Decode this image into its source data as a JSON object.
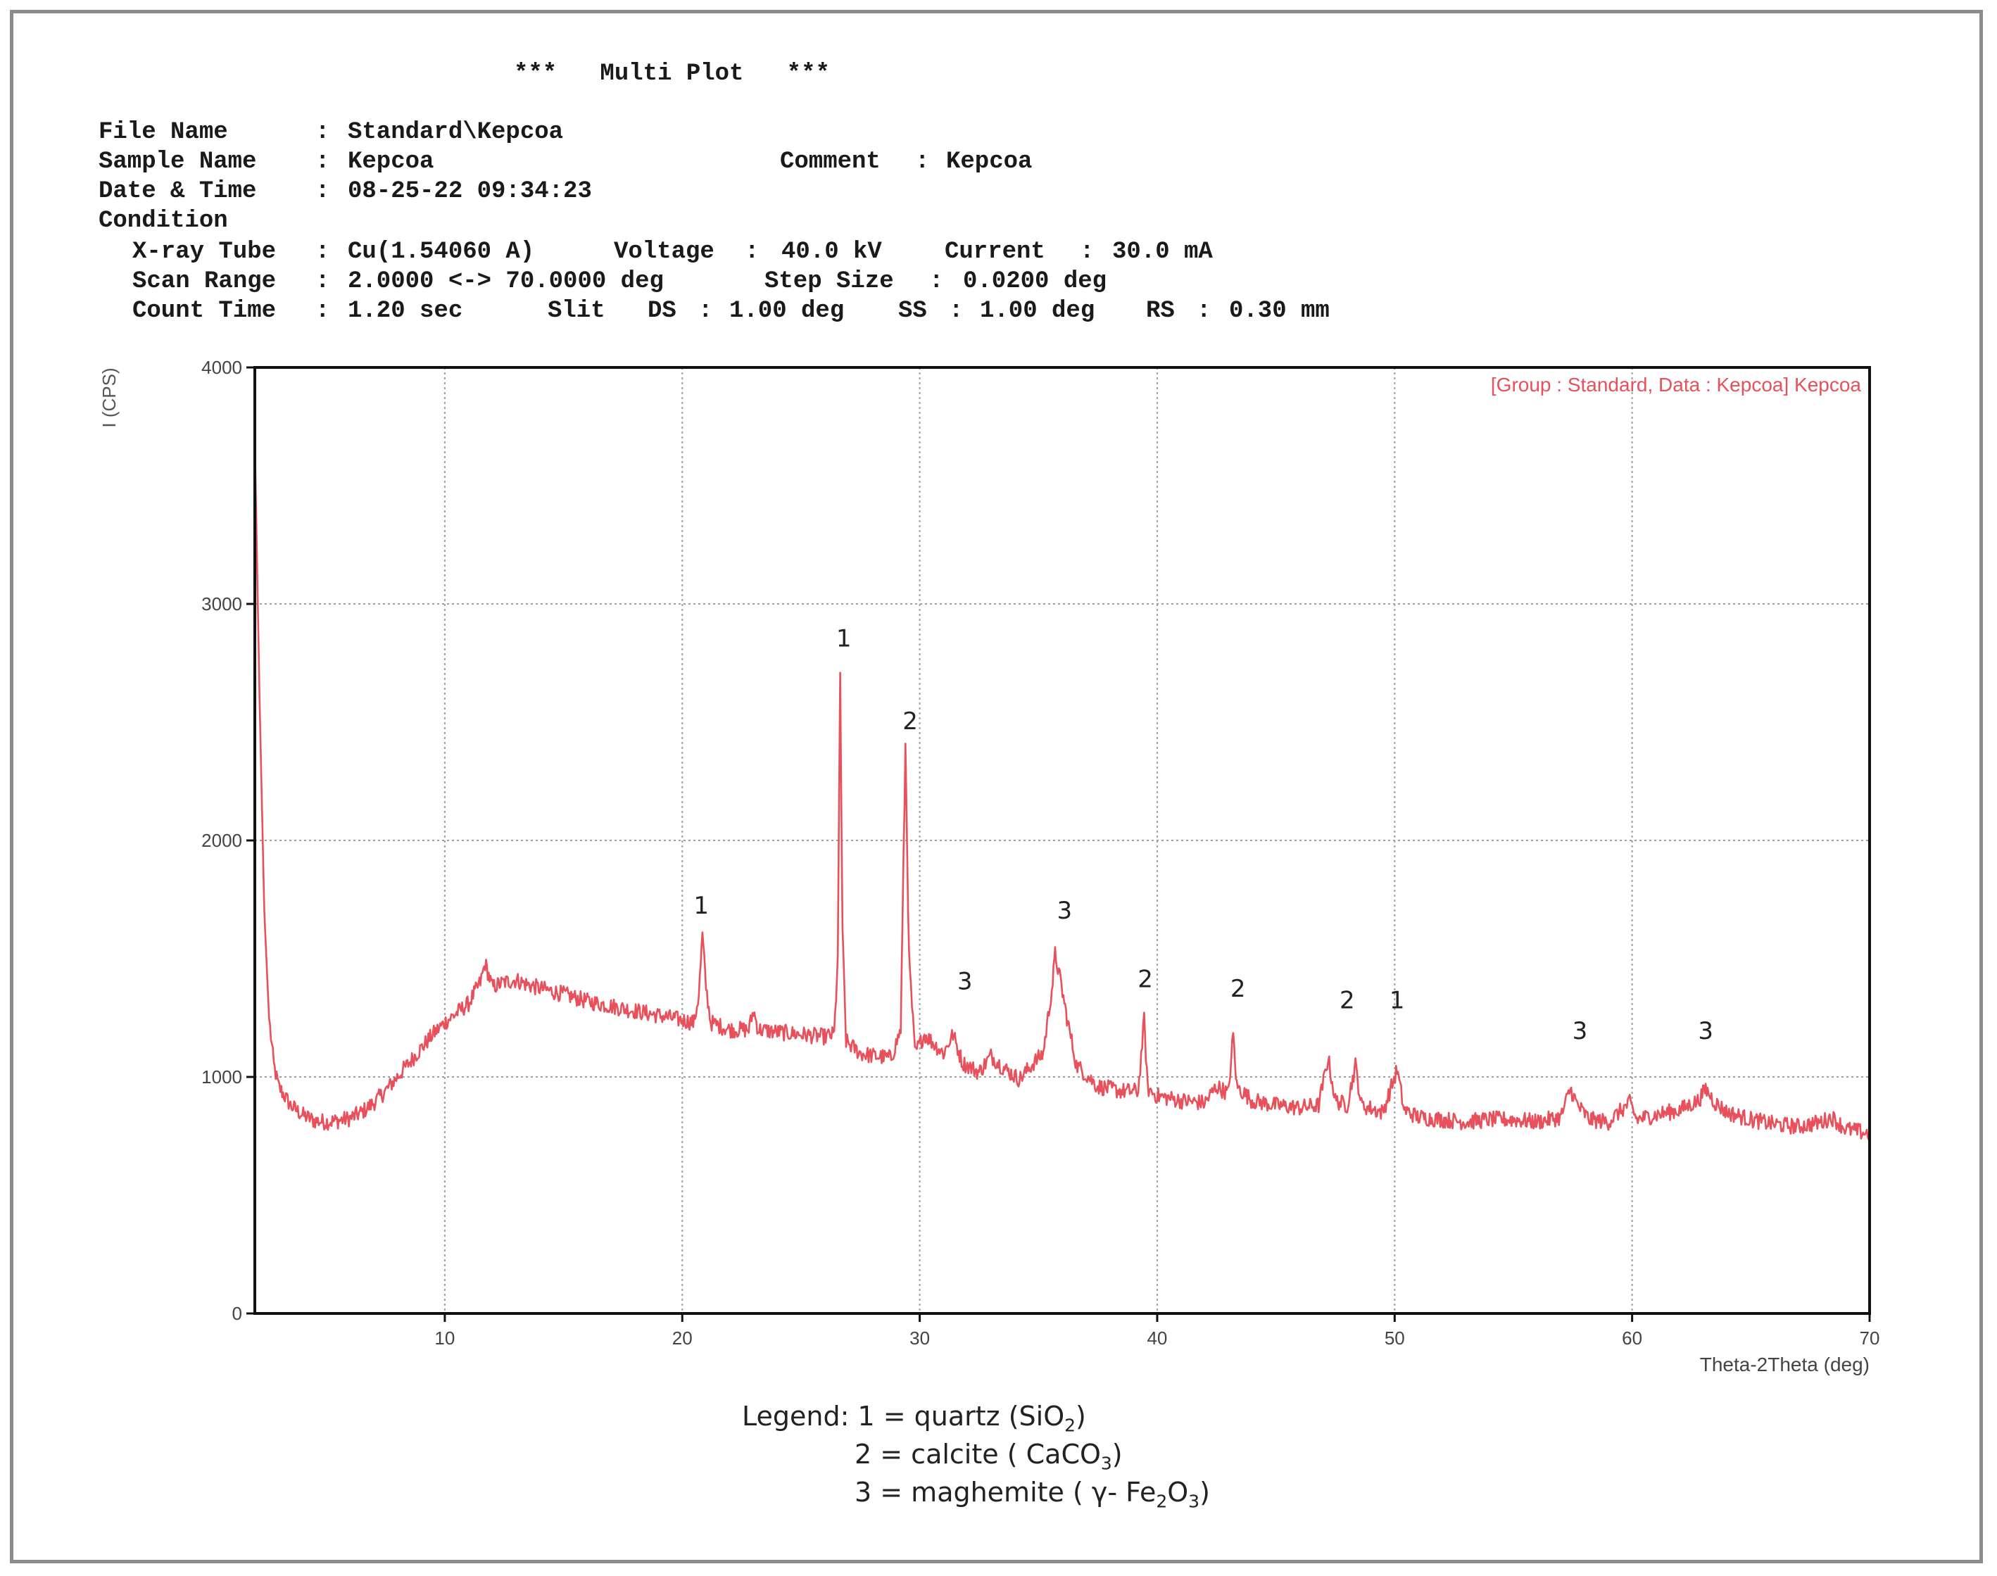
{
  "report": {
    "title": "***   Multi Plot   ***",
    "file_name_label": "File Name",
    "file_name_value": "Standard\\Kepcoa",
    "sample_name_label": "Sample Name",
    "sample_name_value": "Kepcoa",
    "comment_label": "Comment",
    "comment_value": "Kepcoa",
    "date_label": "Date & Time",
    "date_value": "08-25-22 09:34:23",
    "condition_label": "Condition",
    "xray_tube_label": "X-ray Tube",
    "xray_tube_value": "Cu(1.54060 A)",
    "voltage_label": "Voltage",
    "voltage_value": "40.0 kV",
    "current_label": "Current",
    "current_value": "30.0 mA",
    "scan_range_label": "Scan Range",
    "scan_range_value": "2.0000 <-> 70.0000 deg",
    "step_size_label": "Step Size",
    "step_size_value": "0.0200 deg",
    "count_time_label": "Count Time",
    "count_time_value": "1.20 sec",
    "slit_label": "Slit",
    "ds_label": "DS",
    "ds_value": "1.00 deg",
    "ss_label": "SS",
    "ss_value": "1.00 deg",
    "rs_label": "RS",
    "rs_value": "0.30 mm"
  },
  "legend": {
    "prefix": "Legend:",
    "item1_pre": "1 = quartz (SiO",
    "item1_sub": "2",
    "item1_post": ")",
    "item2_pre": "2 = calcite ( CaCO",
    "item2_sub": "3",
    "item2_post": ")",
    "item3_pre": "3 = maghemite  ( γ- Fe",
    "item3_sub1": "2",
    "item3_mid": "O",
    "item3_sub2": "3",
    "item3_post": ")"
  },
  "chart_data": {
    "type": "line",
    "title": "",
    "xlabel": "Theta-2Theta (deg)",
    "ylabel": "I (CPS)",
    "xlim": [
      2,
      70
    ],
    "ylim": [
      0,
      4000
    ],
    "x_ticks": [
      10,
      20,
      30,
      40,
      50,
      60,
      70
    ],
    "y_ticks": [
      0,
      1000,
      2000,
      3000,
      4000
    ],
    "grid": true,
    "legend_position": "top-right",
    "series": [
      {
        "name": "[Group : Standard, Data : Kepcoa] Kepcoa",
        "color": "#e8505b",
        "points": [
          [
            2.0,
            3700
          ],
          [
            2.2,
            2600
          ],
          [
            2.4,
            1700
          ],
          [
            2.6,
            1250
          ],
          [
            2.8,
            1050
          ],
          [
            3.0,
            960
          ],
          [
            3.5,
            880
          ],
          [
            4.0,
            840
          ],
          [
            4.5,
            815
          ],
          [
            5.0,
            810
          ],
          [
            5.5,
            815
          ],
          [
            6.0,
            825
          ],
          [
            6.5,
            850
          ],
          [
            7.0,
            890
          ],
          [
            7.5,
            940
          ],
          [
            8.0,
            1000
          ],
          [
            8.5,
            1060
          ],
          [
            9.0,
            1120
          ],
          [
            9.5,
            1180
          ],
          [
            10.0,
            1230
          ],
          [
            10.5,
            1270
          ],
          [
            11.0,
            1310
          ],
          [
            11.5,
            1400
          ],
          [
            11.7,
            1480
          ],
          [
            12.0,
            1380
          ],
          [
            12.5,
            1400
          ],
          [
            13.0,
            1410
          ],
          [
            13.5,
            1390
          ],
          [
            14.0,
            1375
          ],
          [
            15.0,
            1350
          ],
          [
            16.0,
            1320
          ],
          [
            17.0,
            1300
          ],
          [
            18.0,
            1280
          ],
          [
            19.0,
            1260
          ],
          [
            20.0,
            1240
          ],
          [
            20.5,
            1230
          ],
          [
            20.7,
            1350
          ],
          [
            20.85,
            1600
          ],
          [
            21.0,
            1380
          ],
          [
            21.2,
            1230
          ],
          [
            22.0,
            1200
          ],
          [
            22.8,
            1200
          ],
          [
            23.0,
            1280
          ],
          [
            23.2,
            1200
          ],
          [
            24.0,
            1190
          ],
          [
            25.0,
            1180
          ],
          [
            26.0,
            1170
          ],
          [
            26.4,
            1180
          ],
          [
            26.55,
            1500
          ],
          [
            26.65,
            2700
          ],
          [
            26.75,
            1600
          ],
          [
            26.9,
            1150
          ],
          [
            27.5,
            1100
          ],
          [
            28.0,
            1090
          ],
          [
            28.8,
            1080
          ],
          [
            29.2,
            1200
          ],
          [
            29.4,
            2400
          ],
          [
            29.55,
            1500
          ],
          [
            29.8,
            1100
          ],
          [
            30.2,
            1180
          ],
          [
            30.5,
            1150
          ],
          [
            31.0,
            1100
          ],
          [
            31.4,
            1180
          ],
          [
            31.8,
            1060
          ],
          [
            32.5,
            1020
          ],
          [
            33.0,
            1090
          ],
          [
            33.5,
            1040
          ],
          [
            34.2,
            990
          ],
          [
            34.8,
            1060
          ],
          [
            35.2,
            1100
          ],
          [
            35.6,
            1400
          ],
          [
            35.7,
            1520
          ],
          [
            35.9,
            1420
          ],
          [
            36.2,
            1250
          ],
          [
            36.6,
            1050
          ],
          [
            37.5,
            960
          ],
          [
            38.5,
            940
          ],
          [
            39.2,
            940
          ],
          [
            39.45,
            1240
          ],
          [
            39.6,
            950
          ],
          [
            40.0,
            920
          ],
          [
            41.0,
            900
          ],
          [
            42.0,
            890
          ],
          [
            42.5,
            960
          ],
          [
            43.0,
            930
          ],
          [
            43.2,
            1180
          ],
          [
            43.35,
            960
          ],
          [
            44.0,
            900
          ],
          [
            45.0,
            880
          ],
          [
            46.0,
            870
          ],
          [
            46.8,
            880
          ],
          [
            47.2,
            1080
          ],
          [
            47.5,
            900
          ],
          [
            48.0,
            880
          ],
          [
            48.35,
            1050
          ],
          [
            48.6,
            880
          ],
          [
            49.5,
            850
          ],
          [
            50.1,
            1030
          ],
          [
            50.4,
            860
          ],
          [
            51.0,
            830
          ],
          [
            52.0,
            820
          ],
          [
            53.0,
            810
          ],
          [
            54.0,
            820
          ],
          [
            55.0,
            820
          ],
          [
            56.0,
            810
          ],
          [
            57.0,
            830
          ],
          [
            57.4,
            950
          ],
          [
            57.7,
            880
          ],
          [
            58.2,
            820
          ],
          [
            59.0,
            810
          ],
          [
            59.9,
            890
          ],
          [
            60.2,
            820
          ],
          [
            61.0,
            840
          ],
          [
            62.0,
            860
          ],
          [
            62.8,
            900
          ],
          [
            63.1,
            950
          ],
          [
            63.5,
            890
          ],
          [
            64.0,
            850
          ],
          [
            65.0,
            820
          ],
          [
            66.0,
            800
          ],
          [
            67.0,
            790
          ],
          [
            68.0,
            810
          ],
          [
            68.4,
            830
          ],
          [
            69.0,
            780
          ],
          [
            70.0,
            760
          ]
        ]
      }
    ],
    "annotations": [
      {
        "text": "1",
        "x": 20.8,
        "y": 1690
      },
      {
        "text": "1",
        "x": 26.8,
        "y": 2820
      },
      {
        "text": "2",
        "x": 29.6,
        "y": 2470
      },
      {
        "text": "3",
        "x": 31.9,
        "y": 1370
      },
      {
        "text": "3",
        "x": 36.1,
        "y": 1670
      },
      {
        "text": "2",
        "x": 39.5,
        "y": 1380
      },
      {
        "text": "2",
        "x": 43.4,
        "y": 1340
      },
      {
        "text": "2",
        "x": 48.0,
        "y": 1290
      },
      {
        "text": "1",
        "x": 50.1,
        "y": 1290
      },
      {
        "text": "3",
        "x": 57.8,
        "y": 1160
      },
      {
        "text": "3",
        "x": 63.1,
        "y": 1160
      }
    ]
  }
}
